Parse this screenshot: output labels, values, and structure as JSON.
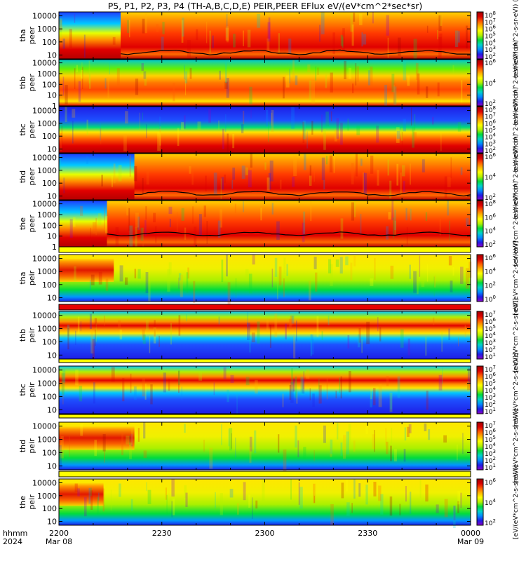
{
  "title": "P5, P1, P2, P3, P4 (TH-A,B,C,D,E) PEIR,PEER EFlux eV/(eV*cm^2*sec*sr)",
  "colors": {
    "background": "#ffffff",
    "ink": "#000000",
    "fill_bar": "#e60000",
    "fill_bar_yellow": "#ffff00"
  },
  "chart_data": {
    "type": "heatmap",
    "x_axis": {
      "row1_label": "hhmm",
      "row2_label": "2024",
      "ticks": [
        {
          "label": "2200",
          "sub": "Mar 08",
          "minute": 0
        },
        {
          "label": "2230",
          "sub": "",
          "minute": 30
        },
        {
          "label": "2300",
          "sub": "",
          "minute": 60
        },
        {
          "label": "2330",
          "sub": "",
          "minute": 90
        },
        {
          "label": "0000",
          "sub": "Mar 09",
          "minute": 120
        }
      ],
      "range_minutes": [
        0,
        120
      ]
    },
    "panels": [
      {
        "probe": "tha",
        "species": "peer",
        "yticks": [
          "10000",
          "1000",
          "100",
          "10"
        ],
        "ylog_range": [
          0.7,
          4.3
        ],
        "cb_ticks": [
          "10^8",
          "10^7",
          "10^6",
          "10^5",
          "10^4",
          "10^3",
          "10^2"
        ],
        "cb_label": "(eV/(eV*cm^2-s-sr-eV)) (A)",
        "onset_minute": 18,
        "has_scp_line": true
      },
      {
        "probe": "thb",
        "species": "peer",
        "yticks": [
          "10000",
          "1000",
          "100",
          "10",
          "1"
        ],
        "ylog_range": [
          0,
          4.3
        ],
        "cb_ticks": [
          "10^6",
          "10^4",
          "10^2"
        ],
        "cb_label": "(eV/(eV*cm^2-s-sr-eV)) (A)",
        "onset_minute": 0,
        "has_scp_line": false
      },
      {
        "probe": "thc",
        "species": "peer",
        "yticks": [
          "10000",
          "1000",
          "100",
          "10"
        ],
        "ylog_range": [
          0.7,
          4.3
        ],
        "cb_ticks": [
          "10^8",
          "10^7",
          "10^6",
          "10^5",
          "10^4",
          "10^3",
          "10^2"
        ],
        "cb_label": "(eV/(eV*cm^2-s-sr-eV)) (A)",
        "onset_minute": 0,
        "has_scp_line": false
      },
      {
        "probe": "thd",
        "species": "peer",
        "yticks": [
          "10000",
          "1000",
          "100",
          "10"
        ],
        "ylog_range": [
          0.7,
          4.3
        ],
        "cb_ticks": [
          "10^6",
          "10^4",
          "10^2"
        ],
        "cb_label": "(eV/(eV*cm^2-s-sr-eV)) (A)",
        "onset_minute": 22,
        "has_scp_line": true
      },
      {
        "probe": "the",
        "species": "peer",
        "yticks": [
          "10000",
          "1000",
          "100",
          "10",
          "1"
        ],
        "ylog_range": [
          0,
          4.3
        ],
        "cb_ticks": [
          "10^8",
          "10^6",
          "10^4",
          "10^2"
        ],
        "cb_label": "(eV/(eV*cm^2-s-sr-eV)) (A)",
        "onset_minute": 14,
        "has_scp_line": true
      },
      {
        "probe": "tha",
        "species": "peir",
        "yticks": [
          "10000",
          "1000",
          "100",
          "10"
        ],
        "ylog_range": [
          0.7,
          4.3
        ],
        "cb_ticks": [
          "10^6",
          "10^4",
          "10^2",
          "10^0"
        ],
        "cb_label": "[eV/(eV*cm^2-s-sr-eV)]",
        "onset_minute": 0,
        "has_scp_line": false
      },
      {
        "probe": "thb",
        "species": "peir",
        "yticks": [
          "10000",
          "1000",
          "100",
          "10"
        ],
        "ylog_range": [
          0.7,
          4.3
        ],
        "cb_ticks": [
          "10^7",
          "10^6",
          "10^5",
          "10^4",
          "10^3",
          "10^2",
          "10^1"
        ],
        "cb_label": "[eV/(eV*cm^2-s-sr-eV)]",
        "onset_minute": 0,
        "has_scp_line": false
      },
      {
        "probe": "thc",
        "species": "peir",
        "yticks": [
          "10000",
          "1000",
          "100",
          "10"
        ],
        "ylog_range": [
          0.7,
          4.3
        ],
        "cb_ticks": [
          "10^7",
          "10^6",
          "10^5",
          "10^4",
          "10^3",
          "10^2",
          "10^1"
        ],
        "cb_label": "[eV/(eV*cm^2-s-sr-eV)]",
        "onset_minute": 0,
        "has_scp_line": false
      },
      {
        "probe": "thd",
        "species": "peir",
        "yticks": [
          "10000",
          "1000",
          "100",
          "10"
        ],
        "ylog_range": [
          0.7,
          4.3
        ],
        "cb_ticks": [
          "10^7",
          "10^6",
          "10^5",
          "10^4",
          "10^3",
          "10^2",
          "10^1"
        ],
        "cb_label": "[eV/(eV*cm^2-s-sr-eV)]",
        "onset_minute": 0,
        "has_scp_line": false
      },
      {
        "probe": "the",
        "species": "peir",
        "yticks": [
          "10000",
          "1000",
          "100",
          "10"
        ],
        "ylog_range": [
          0.7,
          4.3
        ],
        "cb_ticks": [
          "10^6",
          "10^4",
          "10^2"
        ],
        "cb_label": "[eV/(eV*cm^2-s-sr-eV)]",
        "onset_minute": 0,
        "has_scp_line": false
      }
    ],
    "colorscale": [
      "#8b00c8",
      "#1e1ee6",
      "#008cff",
      "#00d2c8",
      "#00dc3c",
      "#b4f000",
      "#ffff00",
      "#ffb400",
      "#ff5a00",
      "#dc0000",
      "#a00000"
    ]
  }
}
